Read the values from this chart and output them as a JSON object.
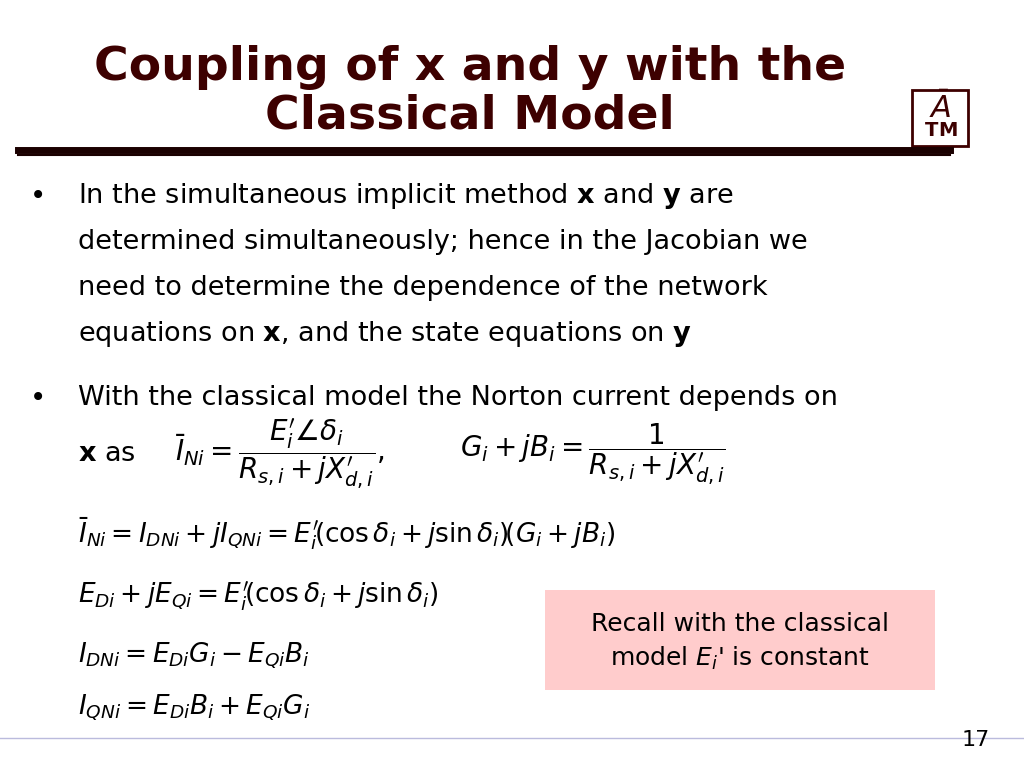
{
  "title_line1": "Coupling of x and y with the",
  "title_line2": "Classical Model",
  "title_color": "#3D0000",
  "title_fontsize": 34,
  "bg_color": "#FFFFFF",
  "divider_color": "#1a0000",
  "text_color": "#000000",
  "page_number": "17",
  "bullet2_intro": "With the classical model the Norton current depends on",
  "recall_box_color": "#FFCCCC",
  "recall_text_line1": "Recall with the classical",
  "recall_text_line2": "model E",
  "recall_text_line3": "' is constant",
  "fs_body": 19.5,
  "fs_math": 19,
  "lh": 0.058
}
